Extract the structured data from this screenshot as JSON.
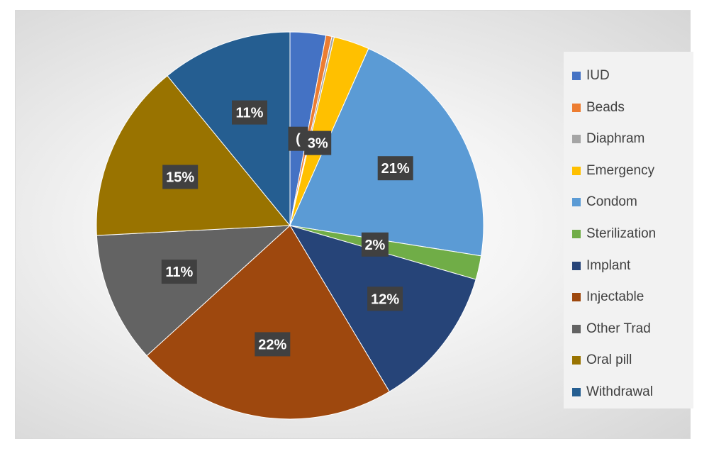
{
  "chart_data": {
    "type": "pie",
    "title": "",
    "categories": [
      "IUD",
      "Beads",
      "Diaphram",
      "Emergency",
      "Condom",
      "Sterilization",
      "Implant",
      "Injectable",
      "Other Trad",
      "Oral pill",
      "Withdrawal"
    ],
    "values": [
      3,
      0.5,
      0.2,
      3,
      21,
      2,
      12,
      22,
      11,
      15,
      11
    ],
    "data_labels": [
      "(",
      "",
      "",
      "3%",
      "21%",
      "2%",
      "12%",
      "22%",
      "11%",
      "15%",
      "11%"
    ],
    "colors": [
      "#4472c4",
      "#ed7d31",
      "#a5a5a5",
      "#ffc000",
      "#5b9bd5",
      "#70ad47",
      "#264478",
      "#9e480e",
      "#636363",
      "#997300",
      "#255e91"
    ],
    "legend_position": "right"
  }
}
